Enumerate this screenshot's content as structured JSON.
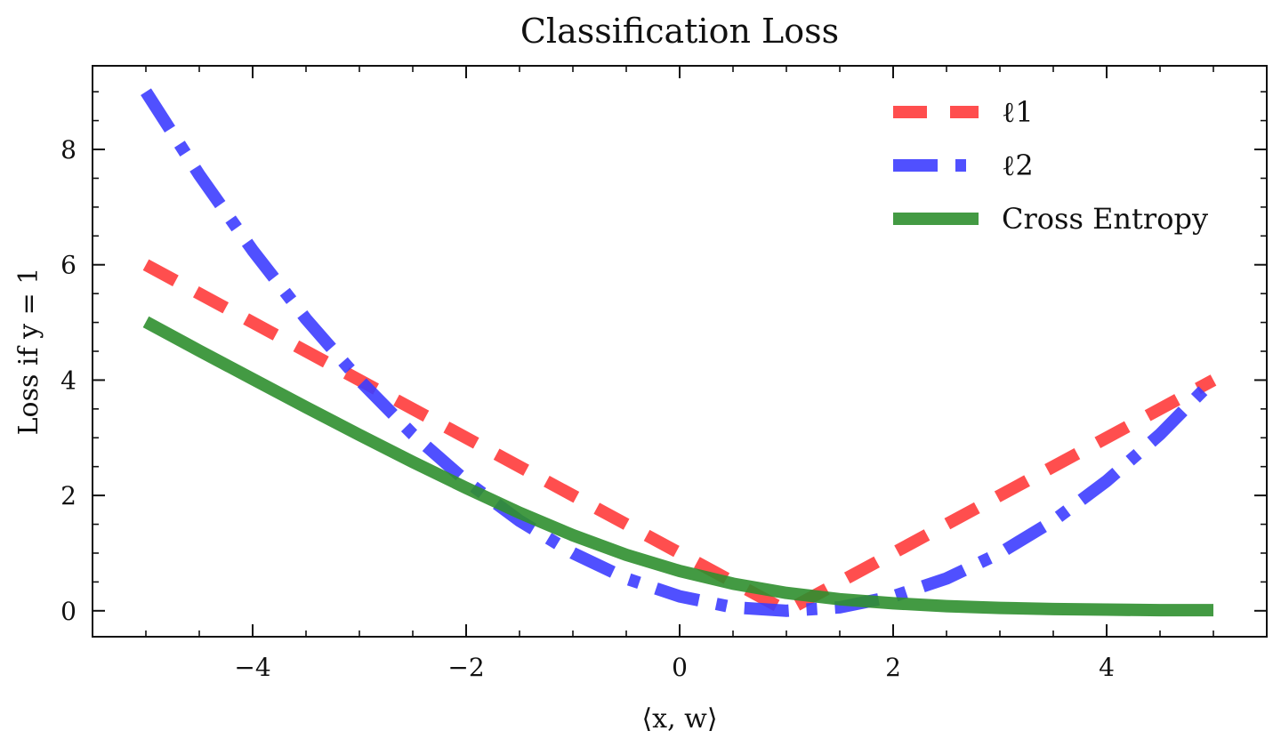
{
  "chart_data": {
    "type": "line",
    "title": "Classification Loss",
    "xlabel": "⟨x, w⟩",
    "ylabel": "Loss if y = 1",
    "xlim": [
      -5.5,
      5.5
    ],
    "ylim": [
      -0.45,
      9.45
    ],
    "x_ticks": [
      -4,
      -2,
      0,
      2,
      4
    ],
    "x_tick_labels": [
      "−4",
      "−2",
      "0",
      "2",
      "4"
    ],
    "y_ticks": [
      0,
      2,
      4,
      6,
      8
    ],
    "y_tick_labels": [
      "0",
      "2",
      "4",
      "6",
      "8"
    ],
    "grid": false,
    "legend_position": "top-right",
    "series": [
      {
        "name": "ℓ1",
        "color": "#ff3b3b",
        "style": "dashed",
        "x": [
          -5,
          1,
          5
        ],
        "y": [
          6,
          0,
          4
        ]
      },
      {
        "name": "ℓ2",
        "color": "#3d3dff",
        "style": "dashdot",
        "x": [
          -5,
          -4.5,
          -4,
          -3.5,
          -3,
          -2.5,
          -2,
          -1.5,
          -1,
          -0.5,
          0,
          0.5,
          1,
          1.5,
          2,
          2.5,
          3,
          3.5,
          4,
          4.5,
          5
        ],
        "y": [
          9,
          7.56,
          6.25,
          5.06,
          4,
          3.06,
          2.25,
          1.56,
          1,
          0.56,
          0.25,
          0.06,
          0,
          0.06,
          0.25,
          0.56,
          1,
          1.56,
          2.25,
          3.06,
          4
        ]
      },
      {
        "name": "Cross Entropy",
        "color": "#2f8f2f",
        "style": "solid",
        "x": [
          -5,
          -4.5,
          -4,
          -3.5,
          -3,
          -2.5,
          -2,
          -1.5,
          -1,
          -0.5,
          0,
          0.5,
          1,
          1.5,
          2,
          2.5,
          3,
          3.5,
          4,
          4.5,
          5
        ],
        "y": [
          5.01,
          4.51,
          4.02,
          3.53,
          3.05,
          2.58,
          2.13,
          1.7,
          1.31,
          0.97,
          0.69,
          0.47,
          0.31,
          0.2,
          0.13,
          0.08,
          0.05,
          0.03,
          0.02,
          0.01,
          0.01
        ]
      }
    ]
  }
}
